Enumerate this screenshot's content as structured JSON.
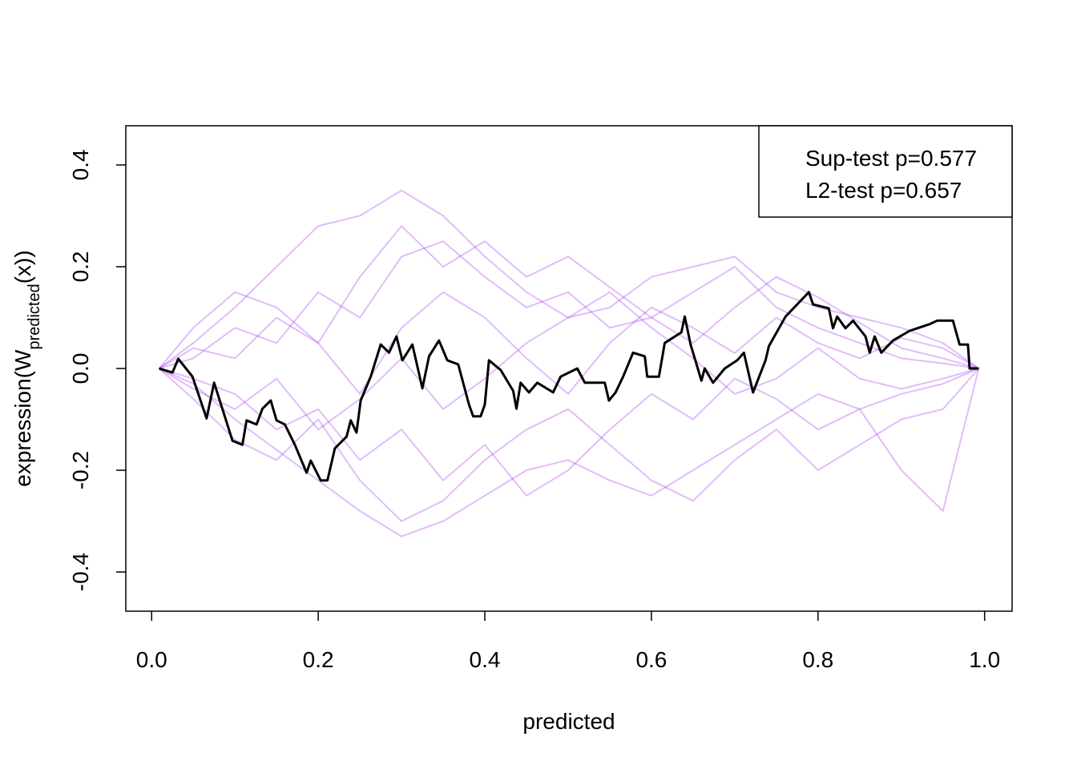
{
  "chart_data": {
    "type": "line",
    "xlabel": "predicted",
    "ylabel": {
      "main": "expression(W",
      "sub": "predicted",
      "tail": "(x))"
    },
    "xlim": [
      -0.031,
      1.033
    ],
    "ylim": [
      -0.477,
      0.477
    ],
    "xticks": [
      {
        "value": 0,
        "label": "0.0"
      },
      0.2,
      0.4,
      0.6,
      0.8,
      {
        "value": 1,
        "label": "1.0"
      }
    ],
    "yticks": [
      -0.4,
      -0.2,
      {
        "value": 0,
        "label": "0.0"
      },
      0.2,
      0.4
    ],
    "legend": [
      "Sup-test p=0.577",
      "L2-test p=0.657"
    ],
    "legend_position": "topright",
    "x": [
      0.009,
      0.05,
      0.1,
      0.15,
      0.2,
      0.25,
      0.3,
      0.35,
      0.4,
      0.45,
      0.5,
      0.55,
      0.6,
      0.65,
      0.7,
      0.75,
      0.8,
      0.85,
      0.9,
      0.95,
      0.993
    ],
    "simulated_color": "#a020f0",
    "simulated_alpha": 0.3,
    "simulated": [
      [
        0,
        0.05,
        0.12,
        0.2,
        0.28,
        0.3,
        0.35,
        0.3,
        0.22,
        0.15,
        0.1,
        0.12,
        0.18,
        0.2,
        0.22,
        0.15,
        0.12,
        0.1,
        0.08,
        0.05,
        0
      ],
      [
        0,
        -0.03,
        -0.1,
        -0.16,
        -0.22,
        -0.28,
        -0.33,
        -0.3,
        -0.25,
        -0.2,
        -0.18,
        -0.22,
        -0.25,
        -0.2,
        -0.15,
        -0.1,
        -0.05,
        -0.08,
        -0.2,
        -0.28,
        0
      ],
      [
        0,
        0.02,
        0.08,
        0.05,
        0.15,
        0.1,
        0.22,
        0.25,
        0.18,
        0.12,
        0.15,
        0.08,
        0.1,
        0.05,
        0.12,
        0.18,
        0.14,
        0.09,
        0.04,
        0.02,
        0
      ],
      [
        0,
        -0.02,
        -0.05,
        -0.12,
        -0.08,
        -0.18,
        -0.12,
        -0.22,
        -0.15,
        -0.25,
        -0.2,
        -0.12,
        -0.05,
        -0.1,
        -0.02,
        -0.06,
        -0.12,
        -0.08,
        -0.05,
        -0.03,
        0
      ],
      [
        0,
        0.04,
        0.02,
        0.1,
        0.05,
        -0.05,
        0.08,
        0.15,
        0.1,
        0.02,
        -0.05,
        0.05,
        0.12,
        0.08,
        0.03,
        0.1,
        0.05,
        0.02,
        0.06,
        0.04,
        0
      ],
      [
        0,
        -0.04,
        -0.08,
        -0.02,
        -0.12,
        -0.06,
        0.02,
        -0.08,
        -0.02,
        0.05,
        0.1,
        0.15,
        0.08,
        0.02,
        -0.05,
        -0.02,
        0.04,
        -0.02,
        -0.04,
        -0.02,
        0
      ],
      [
        0,
        0.08,
        0.15,
        0.12,
        0.05,
        0.18,
        0.28,
        0.2,
        0.25,
        0.18,
        0.22,
        0.16,
        0.1,
        0.15,
        0.2,
        0.12,
        0.08,
        0.05,
        0.02,
        0.01,
        0
      ],
      [
        0,
        -0.06,
        -0.14,
        -0.18,
        -0.1,
        -0.22,
        -0.3,
        -0.26,
        -0.18,
        -0.12,
        -0.08,
        -0.15,
        -0.22,
        -0.26,
        -0.18,
        -0.12,
        -0.2,
        -0.15,
        -0.1,
        -0.08,
        0
      ]
    ],
    "observed": {
      "color": "#000000",
      "x": [
        0.009,
        0.025,
        0.032,
        0.049,
        0.066,
        0.075,
        0.097,
        0.109,
        0.114,
        0.126,
        0.133,
        0.143,
        0.15,
        0.16,
        0.172,
        0.186,
        0.191,
        0.203,
        0.211,
        0.22,
        0.234,
        0.239,
        0.246,
        0.251,
        0.263,
        0.275,
        0.285,
        0.294,
        0.301,
        0.313,
        0.325,
        0.333,
        0.345,
        0.355,
        0.368,
        0.381,
        0.386,
        0.395,
        0.4,
        0.405,
        0.419,
        0.434,
        0.438,
        0.443,
        0.453,
        0.463,
        0.482,
        0.491,
        0.511,
        0.52,
        0.544,
        0.549,
        0.557,
        0.566,
        0.578,
        0.592,
        0.595,
        0.609,
        0.616,
        0.636,
        0.64,
        0.647,
        0.66,
        0.664,
        0.674,
        0.688,
        0.703,
        0.711,
        0.722,
        0.737,
        0.741,
        0.761,
        0.775,
        0.789,
        0.794,
        0.813,
        0.818,
        0.823,
        0.833,
        0.842,
        0.857,
        0.862,
        0.868,
        0.876,
        0.89,
        0.91,
        0.934,
        0.943,
        0.962,
        0.97,
        0.98,
        0.982,
        0.993
      ],
      "values": [
        0,
        -0.008,
        0.019,
        -0.016,
        -0.098,
        -0.028,
        -0.142,
        -0.15,
        -0.102,
        -0.11,
        -0.079,
        -0.063,
        -0.102,
        -0.11,
        -0.15,
        -0.205,
        -0.181,
        -0.22,
        -0.22,
        -0.157,
        -0.134,
        -0.102,
        -0.126,
        -0.063,
        -0.016,
        0.047,
        0.031,
        0.063,
        0.016,
        0.047,
        -0.039,
        0.024,
        0.055,
        0.016,
        0.008,
        -0.071,
        -0.094,
        -0.094,
        -0.071,
        0.016,
        -0.003,
        -0.044,
        -0.079,
        -0.028,
        -0.047,
        -0.028,
        -0.047,
        -0.016,
        0.0,
        -0.028,
        -0.028,
        -0.063,
        -0.047,
        -0.016,
        0.031,
        0.024,
        -0.016,
        -0.016,
        0.05,
        0.071,
        0.102,
        0.047,
        -0.024,
        0.0,
        -0.028,
        0.0,
        0.016,
        0.031,
        -0.047,
        0.016,
        0.044,
        0.102,
        0.126,
        0.15,
        0.126,
        0.118,
        0.079,
        0.102,
        0.079,
        0.094,
        0.063,
        0.031,
        0.063,
        0.031,
        0.055,
        0.074,
        0.087,
        0.094,
        0.094,
        0.047,
        0.047,
        0.0,
        0.0
      ]
    }
  }
}
